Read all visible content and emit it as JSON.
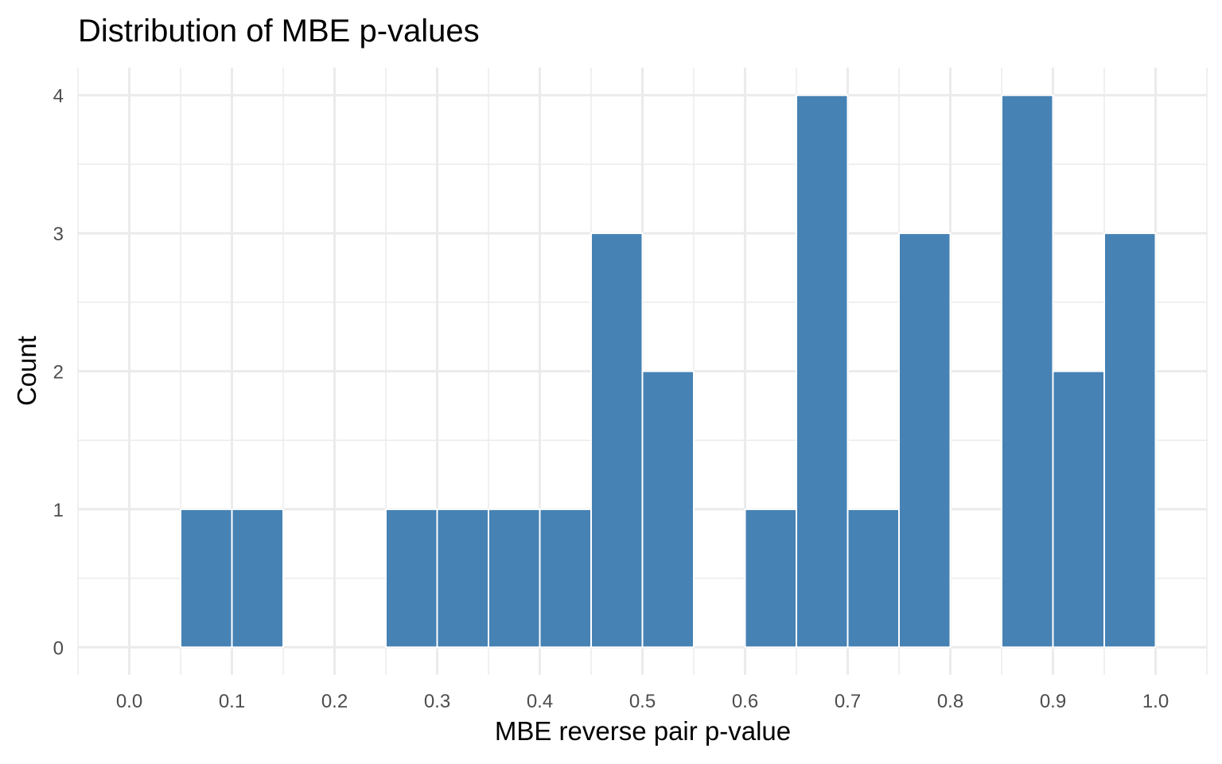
{
  "chart_data": {
    "type": "bar",
    "title": "Distribution of MBE p-values",
    "xlabel": "MBE reverse pair p-value",
    "ylabel": "Count",
    "bin_width": 0.05,
    "bins": [
      {
        "start": 0.05,
        "end": 0.1,
        "count": 1
      },
      {
        "start": 0.1,
        "end": 0.15,
        "count": 1
      },
      {
        "start": 0.25,
        "end": 0.3,
        "count": 1
      },
      {
        "start": 0.3,
        "end": 0.35,
        "count": 1
      },
      {
        "start": 0.35,
        "end": 0.4,
        "count": 1
      },
      {
        "start": 0.4,
        "end": 0.45,
        "count": 1
      },
      {
        "start": 0.45,
        "end": 0.5,
        "count": 3
      },
      {
        "start": 0.5,
        "end": 0.55,
        "count": 2
      },
      {
        "start": 0.6,
        "end": 0.65,
        "count": 1
      },
      {
        "start": 0.65,
        "end": 0.7,
        "count": 4
      },
      {
        "start": 0.7,
        "end": 0.75,
        "count": 1
      },
      {
        "start": 0.75,
        "end": 0.8,
        "count": 3
      },
      {
        "start": 0.85,
        "end": 0.9,
        "count": 4
      },
      {
        "start": 0.9,
        "end": 0.95,
        "count": 2
      },
      {
        "start": 0.95,
        "end": 1.0,
        "count": 3
      }
    ],
    "xlim": [
      -0.05,
      1.05
    ],
    "ylim": [
      -0.2,
      4.2
    ],
    "x_ticks": [
      "0.0",
      "0.1",
      "0.2",
      "0.3",
      "0.4",
      "0.5",
      "0.6",
      "0.7",
      "0.8",
      "0.9",
      "1.0"
    ],
    "y_ticks": [
      "0",
      "1",
      "2",
      "3",
      "4"
    ],
    "grid": true,
    "legend": "none",
    "colors": {
      "bar_fill": "#4682b4",
      "bar_outline": "#ffffff",
      "grid": "#ebebeb"
    }
  }
}
